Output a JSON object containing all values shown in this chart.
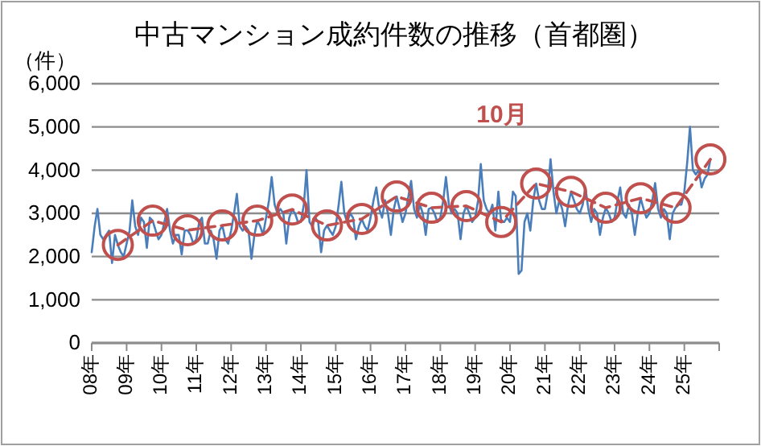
{
  "chart_data": {
    "type": "line",
    "title": "中古マンション成約件数の推移（首都圏）",
    "ylabel": "（件）",
    "xlim": [
      "2008-01",
      "2026-01"
    ],
    "xticks": [
      {
        "value": "2008-01",
        "label": "08年"
      },
      {
        "value": "2009-01",
        "label": "09年"
      },
      {
        "value": "2010-01",
        "label": "10年"
      },
      {
        "value": "2011-01",
        "label": "11年"
      },
      {
        "value": "2012-01",
        "label": "12年"
      },
      {
        "value": "2013-01",
        "label": "13年"
      },
      {
        "value": "2014-01",
        "label": "14年"
      },
      {
        "value": "2015-01",
        "label": "15年"
      },
      {
        "value": "2016-01",
        "label": "16年"
      },
      {
        "value": "2017-01",
        "label": "17年"
      },
      {
        "value": "2018-01",
        "label": "18年"
      },
      {
        "value": "2019-01",
        "label": "19年"
      },
      {
        "value": "2020-01",
        "label": "20年"
      },
      {
        "value": "2021-01",
        "label": "21年"
      },
      {
        "value": "2022-01",
        "label": "22年"
      },
      {
        "value": "2023-01",
        "label": "23年"
      },
      {
        "value": "2024-01",
        "label": "24年"
      },
      {
        "value": "2025-01",
        "label": "25年"
      },
      {
        "value": "2026-01",
        "label": null
      }
    ],
    "ylim": [
      0,
      6000
    ],
    "yticks": [
      {
        "value": 0,
        "label": "0"
      },
      {
        "value": 1000,
        "label": "1,000"
      },
      {
        "value": 2000,
        "label": "2,000"
      },
      {
        "value": 3000,
        "label": "3,000"
      },
      {
        "value": 4000,
        "label": "4,000"
      },
      {
        "value": 5000,
        "label": "5,000"
      },
      {
        "value": 6000,
        "label": "6,000"
      }
    ],
    "grid": "y",
    "legend": false,
    "series": [
      {
        "color": "#4a7ebb",
        "line_style": "solid",
        "marker": "none",
        "x": [
          "2008-01",
          "2008-02",
          "2008-03",
          "2008-04",
          "2008-05",
          "2008-06",
          "2008-07",
          "2008-08",
          "2008-09",
          "2008-10",
          "2008-11",
          "2008-12",
          "2009-01",
          "2009-02",
          "2009-03",
          "2009-04",
          "2009-05",
          "2009-06",
          "2009-07",
          "2009-08",
          "2009-09",
          "2009-10",
          "2009-11",
          "2009-12",
          "2010-01",
          "2010-02",
          "2010-03",
          "2010-04",
          "2010-05",
          "2010-06",
          "2010-07",
          "2010-08",
          "2010-09",
          "2010-10",
          "2010-11",
          "2010-12",
          "2011-01",
          "2011-02",
          "2011-03",
          "2011-04",
          "2011-05",
          "2011-06",
          "2011-07",
          "2011-08",
          "2011-09",
          "2011-10",
          "2011-11",
          "2011-12",
          "2012-01",
          "2012-02",
          "2012-03",
          "2012-04",
          "2012-05",
          "2012-06",
          "2012-07",
          "2012-08",
          "2012-09",
          "2012-10",
          "2012-11",
          "2012-12",
          "2013-01",
          "2013-02",
          "2013-03",
          "2013-04",
          "2013-05",
          "2013-06",
          "2013-07",
          "2013-08",
          "2013-09",
          "2013-10",
          "2013-11",
          "2013-12",
          "2014-01",
          "2014-02",
          "2014-03",
          "2014-04",
          "2014-05",
          "2014-06",
          "2014-07",
          "2014-08",
          "2014-09",
          "2014-10",
          "2014-11",
          "2014-12",
          "2015-01",
          "2015-02",
          "2015-03",
          "2015-04",
          "2015-05",
          "2015-06",
          "2015-07",
          "2015-08",
          "2015-09",
          "2015-10",
          "2015-11",
          "2015-12",
          "2016-01",
          "2016-02",
          "2016-03",
          "2016-04",
          "2016-05",
          "2016-06",
          "2016-07",
          "2016-08",
          "2016-09",
          "2016-10",
          "2016-11",
          "2016-12",
          "2017-01",
          "2017-02",
          "2017-03",
          "2017-04",
          "2017-05",
          "2017-06",
          "2017-07",
          "2017-08",
          "2017-09",
          "2017-10",
          "2017-11",
          "2017-12",
          "2018-01",
          "2018-02",
          "2018-03",
          "2018-04",
          "2018-05",
          "2018-06",
          "2018-07",
          "2018-08",
          "2018-09",
          "2018-10",
          "2018-11",
          "2018-12",
          "2019-01",
          "2019-02",
          "2019-03",
          "2019-04",
          "2019-05",
          "2019-06",
          "2019-07",
          "2019-08",
          "2019-09",
          "2019-10",
          "2019-11",
          "2019-12",
          "2020-01",
          "2020-02",
          "2020-03",
          "2020-04",
          "2020-05",
          "2020-06",
          "2020-07",
          "2020-08",
          "2020-09",
          "2020-10",
          "2020-11",
          "2020-12",
          "2021-01",
          "2021-02",
          "2021-03",
          "2021-04",
          "2021-05",
          "2021-06",
          "2021-07",
          "2021-08",
          "2021-09",
          "2021-10",
          "2021-11",
          "2021-12",
          "2022-01",
          "2022-02",
          "2022-03",
          "2022-04",
          "2022-05",
          "2022-06",
          "2022-07",
          "2022-08",
          "2022-09",
          "2022-10",
          "2022-11",
          "2022-12",
          "2023-01",
          "2023-02",
          "2023-03",
          "2023-04",
          "2023-05",
          "2023-06",
          "2023-07",
          "2023-08",
          "2023-09",
          "2023-10",
          "2023-11",
          "2023-12",
          "2024-01",
          "2024-02",
          "2024-03",
          "2024-04",
          "2024-05",
          "2024-06",
          "2024-07",
          "2024-08",
          "2024-09",
          "2024-10",
          "2024-11",
          "2024-12",
          "2025-01",
          "2025-02",
          "2025-03",
          "2025-04",
          "2025-05",
          "2025-06",
          "2025-07",
          "2025-08",
          "2025-09",
          "2025-10"
        ],
        "values": [
          2100,
          2700,
          3100,
          2500,
          2400,
          2500,
          2600,
          1850,
          2500,
          2270,
          2100,
          2000,
          2300,
          2600,
          3300,
          2700,
          2500,
          2900,
          2800,
          2200,
          2900,
          2830,
          2600,
          2400,
          2500,
          2800,
          3100,
          2600,
          2300,
          2500,
          2500,
          2050,
          2600,
          2610,
          2500,
          2300,
          2400,
          2800,
          2900,
          2300,
          2300,
          2600,
          2400,
          1950,
          2600,
          2720,
          2400,
          2300,
          2600,
          3000,
          3450,
          2700,
          2600,
          2700,
          2600,
          1950,
          2500,
          2830,
          2700,
          2500,
          2900,
          3300,
          3840,
          3200,
          3000,
          3100,
          3000,
          2300,
          2900,
          3090,
          3000,
          2800,
          2800,
          3200,
          4000,
          2800,
          2700,
          2900,
          2800,
          2100,
          2600,
          2720,
          2600,
          2500,
          2700,
          3200,
          3730,
          3000,
          2800,
          3000,
          2900,
          2400,
          2700,
          2870,
          2700,
          2600,
          2900,
          3300,
          3600,
          3100,
          2900,
          3300,
          3000,
          2500,
          3100,
          3390,
          3100,
          2800,
          3000,
          3400,
          3750,
          3100,
          2900,
          3200,
          3000,
          2500,
          3100,
          3130,
          3000,
          2800,
          2900,
          3300,
          3840,
          3200,
          3000,
          3100,
          3000,
          2400,
          3000,
          3170,
          3000,
          2800,
          2900,
          3300,
          4140,
          3300,
          3100,
          3000,
          3200,
          2600,
          3500,
          2800,
          2800,
          2900,
          2800,
          3500,
          3400,
          1600,
          1680,
          2800,
          3000,
          2600,
          3300,
          3690,
          3300,
          3100,
          3100,
          3500,
          4250,
          3500,
          3000,
          3300,
          3100,
          2700,
          3200,
          3500,
          3300,
          3100,
          3000,
          3200,
          3600,
          3100,
          2800,
          3100,
          3000,
          2500,
          2900,
          3130,
          3000,
          2800,
          2900,
          3300,
          3600,
          3000,
          2900,
          3200,
          3000,
          2500,
          3000,
          3350,
          3100,
          2900,
          3000,
          3300,
          3700,
          3100,
          2900,
          3100,
          3000,
          2400,
          3000,
          3130,
          3200,
          3200,
          3500,
          4200,
          5000,
          4000,
          3900,
          4000,
          3600,
          3800,
          3900,
          4250
        ]
      },
      {
        "name": "10月",
        "color": "#c0504d",
        "line_style": "dashed",
        "marker": "circle",
        "x": [
          "2008-10",
          "2009-10",
          "2010-10",
          "2011-10",
          "2012-10",
          "2013-10",
          "2014-10",
          "2015-10",
          "2016-10",
          "2017-10",
          "2018-10",
          "2019-10",
          "2020-10",
          "2021-10",
          "2022-10",
          "2023-10",
          "2024-10",
          "2025-10"
        ],
        "values": [
          2270,
          2830,
          2610,
          2720,
          2830,
          3090,
          2720,
          2870,
          3390,
          3130,
          3170,
          2800,
          3690,
          3500,
          3130,
          3350,
          3130,
          4250
        ]
      }
    ]
  }
}
